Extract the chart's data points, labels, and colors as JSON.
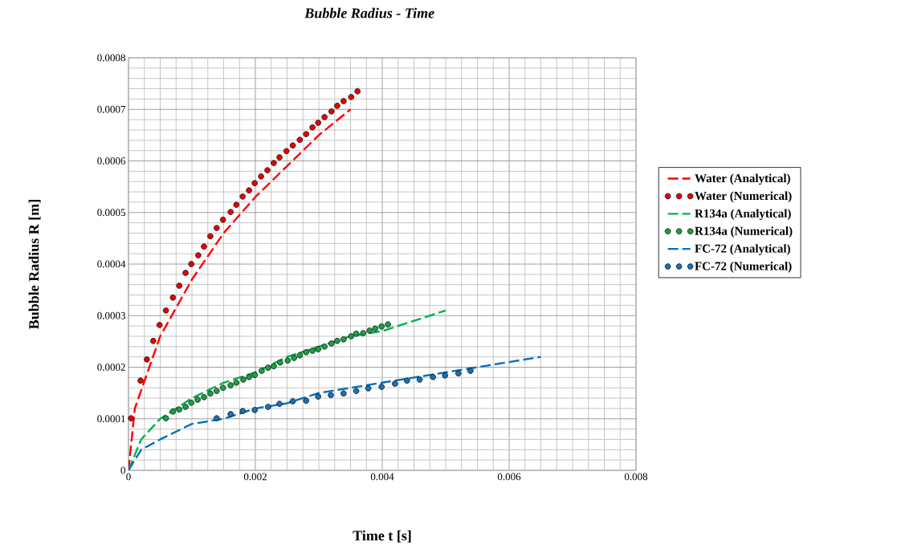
{
  "chart_data": {
    "type": "line",
    "title": "Bubble Radius - Time",
    "xlabel": "Time t [s]",
    "ylabel": "Bubble Radius R [m]",
    "xlim": [
      0,
      0.008
    ],
    "ylim": [
      0,
      0.0008
    ],
    "xticks": [
      0,
      0.002,
      0.004,
      0.006,
      0.008
    ],
    "yticks": [
      0,
      0.0001,
      0.0002,
      0.0003,
      0.0004,
      0.0005,
      0.0006,
      0.0007,
      0.0008
    ],
    "grid": true,
    "legend": "right",
    "series": [
      {
        "name": "Water (Analytical)",
        "line_style": "dashed",
        "marker": "none",
        "color": "#ff0000",
        "x": [
          0,
          0.0001,
          0.0005,
          0.001,
          0.0015,
          0.002,
          0.0025,
          0.003,
          0.0035
        ],
        "values": [
          0,
          0.00012,
          0.00026,
          0.00037,
          0.00046,
          0.00053,
          0.00059,
          0.00065,
          0.0007
        ]
      },
      {
        "name": "Water (Numerical)",
        "type": "scatter",
        "marker": "circle",
        "color": "#e80000",
        "x": [
          4e-05,
          0.00019,
          0.00029,
          0.00039,
          0.00049,
          0.00059,
          0.0007,
          0.0008,
          0.0009,
          0.00099,
          0.0011,
          0.00119,
          0.00129,
          0.00139,
          0.00149,
          0.00161,
          0.0017,
          0.0018,
          0.0019,
          0.00199,
          0.00209,
          0.00219,
          0.00229,
          0.00238,
          0.00249,
          0.00259,
          0.0027,
          0.0028,
          0.0029,
          0.00299,
          0.00309,
          0.0032,
          0.00329,
          0.00339,
          0.00351,
          0.00361
        ],
        "values": [
          0.000101,
          0.000174,
          0.000215,
          0.000251,
          0.000282,
          0.00031,
          0.000335,
          0.000358,
          0.000383,
          0.0004,
          0.000417,
          0.000434,
          0.000454,
          0.00047,
          0.000486,
          0.000501,
          0.000515,
          0.000531,
          0.000543,
          0.000557,
          0.00057,
          0.000582,
          0.000596,
          0.000607,
          0.000619,
          0.00063,
          0.000641,
          0.000652,
          0.000665,
          0.000674,
          0.000685,
          0.000696,
          0.000707,
          0.000716,
          0.000724,
          0.000735
        ]
      },
      {
        "name": "R134a (Analytical)",
        "line_style": "dashed",
        "marker": "none",
        "color": "#00b050",
        "x": [
          0,
          0.0002,
          0.0005,
          0.001,
          0.0015,
          0.002,
          0.0025,
          0.003,
          0.0035,
          0.004,
          0.0045,
          0.005
        ],
        "values": [
          0,
          6e-05,
          0.0001,
          0.00014,
          0.00017,
          0.00019,
          0.00022,
          0.00024,
          0.00026,
          0.00027,
          0.00029,
          0.00031
        ]
      },
      {
        "name": "R134a (Numerical)",
        "type": "scatter",
        "marker": "circle",
        "color": "#1e9e45",
        "x": [
          0.00059,
          0.0007,
          0.0008,
          0.0009,
          0.00099,
          0.00109,
          0.00119,
          0.00129,
          0.00139,
          0.00149,
          0.00161,
          0.0017,
          0.00181,
          0.0019,
          0.00199,
          0.0021,
          0.0022,
          0.00229,
          0.00239,
          0.00251,
          0.00261,
          0.0027,
          0.0028,
          0.0029,
          0.00299,
          0.00309,
          0.0032,
          0.00329,
          0.00339,
          0.00351,
          0.00359,
          0.0037,
          0.0038,
          0.00389,
          0.00399,
          0.00409
        ],
        "values": [
          0.000101,
          0.000114,
          0.000118,
          0.000123,
          0.000131,
          0.000137,
          0.000142,
          0.000149,
          0.000154,
          0.00016,
          0.000165,
          0.00017,
          0.000176,
          0.000181,
          0.000185,
          0.000193,
          0.000199,
          0.000202,
          0.000209,
          0.000213,
          0.000218,
          0.000223,
          0.000229,
          0.000232,
          0.000235,
          0.00024,
          0.000246,
          0.000251,
          0.000254,
          0.00026,
          0.000265,
          0.000266,
          0.000271,
          0.000275,
          0.000279,
          0.000283
        ]
      },
      {
        "name": "FC-72 (Analytical)",
        "line_style": "dashed",
        "marker": "none",
        "color": "#0070c0",
        "x": [
          0,
          0.0002,
          0.0005,
          0.001,
          0.0015,
          0.002,
          0.0025,
          0.003,
          0.0035,
          0.004,
          0.0045,
          0.005,
          0.0055,
          0.006,
          0.0065
        ],
        "values": [
          0,
          4e-05,
          6e-05,
          9e-05,
          0.0001,
          0.00012,
          0.00013,
          0.00015,
          0.00016,
          0.00017,
          0.00018,
          0.00019,
          0.0002,
          0.00021,
          0.00022
        ]
      },
      {
        "name": "FC-72 (Numerical)",
        "type": "scatter",
        "marker": "circle",
        "color": "#1f6fb2",
        "x": [
          0.00139,
          0.00161,
          0.0018,
          0.00199,
          0.0022,
          0.00238,
          0.00259,
          0.0028,
          0.00299,
          0.00319,
          0.00339,
          0.00359,
          0.00378,
          0.00399,
          0.0042,
          0.00439,
          0.00459,
          0.0048,
          0.00499,
          0.0052,
          0.00539
        ],
        "values": [
          0.000101,
          0.000109,
          0.000115,
          0.000117,
          0.000123,
          0.000129,
          0.000134,
          0.000135,
          0.000143,
          0.000146,
          0.000149,
          0.000154,
          0.000159,
          0.000162,
          0.000168,
          0.000174,
          0.000176,
          0.000181,
          0.000184,
          0.000188,
          0.000193
        ]
      }
    ]
  }
}
